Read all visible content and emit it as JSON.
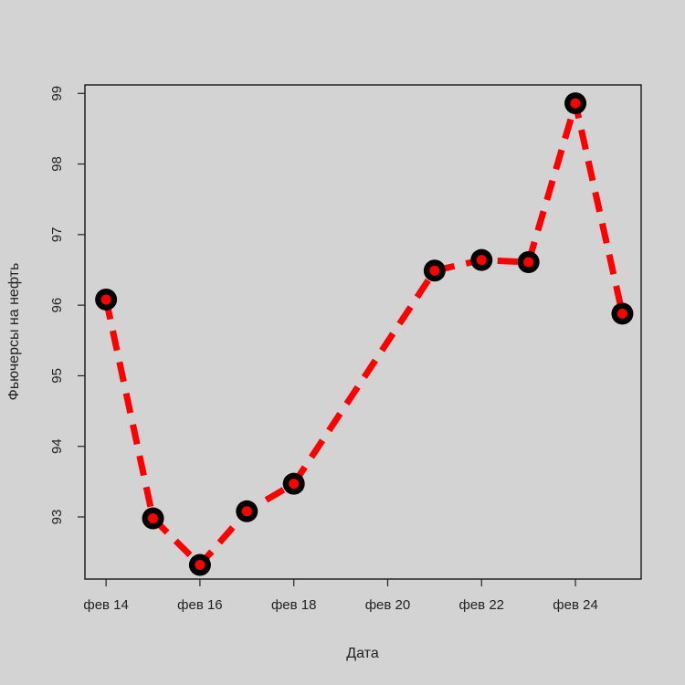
{
  "chart_data": {
    "type": "line",
    "title": "",
    "xlabel": "Дата",
    "ylabel": "Фьючерсы на нефть",
    "x": [
      "фев 14",
      "фев 15",
      "фев 16",
      "фев 17",
      "фев 18",
      "фев 21",
      "фев 22",
      "фев 23",
      "фев 24",
      "фев 25"
    ],
    "x_days": [
      14,
      15,
      16,
      17,
      18,
      21,
      22,
      23,
      24,
      25
    ],
    "xticks": [
      14,
      16,
      18,
      20,
      22,
      24
    ],
    "xtick_labels": [
      "фев 14",
      "фев 16",
      "фев 18",
      "фев 20",
      "фев 22",
      "фев 24"
    ],
    "yticks": [
      93,
      94,
      95,
      96,
      97,
      98,
      99
    ],
    "ytick_labels": [
      "93",
      "94",
      "95",
      "96",
      "97",
      "98",
      "99"
    ],
    "xlim": [
      13.55,
      25.4
    ],
    "ylim": [
      92.12,
      99.12
    ],
    "series": [
      {
        "values": [
          96.08,
          92.98,
          92.32,
          93.08,
          93.47,
          96.49,
          96.64,
          96.61,
          98.86,
          95.88
        ],
        "line_color": "#ff0000",
        "line_style": "dashed",
        "marker_color": "#000000",
        "marker_fill": "#ff0000"
      }
    ],
    "grid": false,
    "legend": "none"
  }
}
